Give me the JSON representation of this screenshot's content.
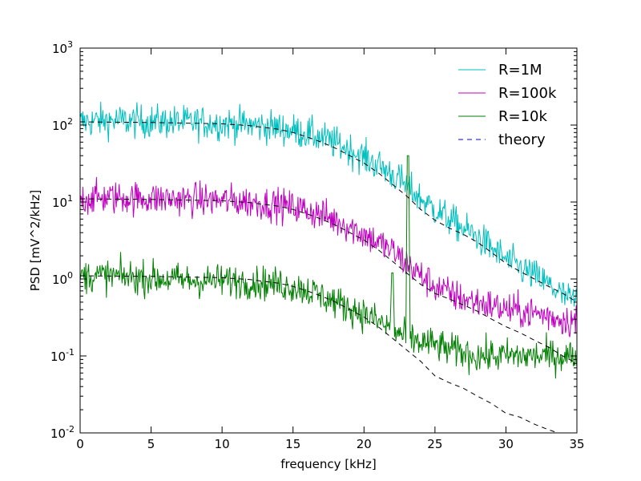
{
  "chart_data": {
    "type": "line",
    "title": "",
    "xlabel": "frequency [kHz]",
    "ylabel": "PSD [mV^2/kHz]",
    "xlim": [
      0,
      35
    ],
    "ylim": [
      0.01,
      1000
    ],
    "yscale": "log",
    "x_ticks": [
      "0",
      "5",
      "10",
      "15",
      "20",
      "25",
      "30",
      "35"
    ],
    "y_ticks": [
      {
        "base": "10",
        "exp": "-2"
      },
      {
        "base": "10",
        "exp": "-1"
      },
      {
        "base": "10",
        "exp": "0"
      },
      {
        "base": "10",
        "exp": "1"
      },
      {
        "base": "10",
        "exp": "2"
      },
      {
        "base": "10",
        "exp": "3"
      }
    ],
    "grid": false,
    "legend_position": "top-right",
    "series": [
      {
        "name": "R=1M",
        "color": "#00bfbf",
        "style": "solid",
        "x": [
          0,
          2,
          4,
          6,
          8,
          10,
          12,
          14,
          15,
          16,
          17,
          18,
          19,
          20,
          21,
          22,
          23,
          24,
          25,
          26,
          27,
          28,
          29,
          30,
          31,
          32,
          33,
          34,
          35
        ],
        "y": [
          110,
          115,
          112,
          110,
          108,
          105,
          100,
          92,
          85,
          78,
          68,
          58,
          48,
          38,
          30,
          23,
          16,
          11,
          8,
          6.0,
          4.5,
          3.5,
          2.5,
          1.8,
          1.4,
          1.1,
          0.85,
          0.6,
          0.5
        ]
      },
      {
        "name": "R=100k",
        "color": "#bf00bf",
        "style": "solid",
        "x": [
          0,
          2,
          4,
          6,
          8,
          10,
          12,
          14,
          15,
          16,
          17,
          18,
          19,
          20,
          21,
          22,
          23,
          24,
          25,
          26,
          27,
          28,
          29,
          30,
          31,
          32,
          33,
          34,
          35
        ],
        "y": [
          11,
          11.5,
          11.2,
          11,
          10.8,
          10.5,
          10,
          9.2,
          8.5,
          7.8,
          6.8,
          5.8,
          4.8,
          3.8,
          3.0,
          2.3,
          1.6,
          1.1,
          0.8,
          0.65,
          0.55,
          0.5,
          0.45,
          0.4,
          0.38,
          0.36,
          0.33,
          0.3,
          0.28
        ]
      },
      {
        "name": "R=10k",
        "color": "#007f00",
        "style": "solid",
        "x": [
          0,
          2,
          4,
          6,
          8,
          10,
          12,
          14,
          15,
          16,
          17,
          18,
          19,
          20,
          21,
          22,
          23,
          24,
          25,
          26,
          27,
          28,
          29,
          30,
          31,
          32,
          33,
          34,
          35
        ],
        "y": [
          1.1,
          1.1,
          1.05,
          1.0,
          0.95,
          0.95,
          0.92,
          0.85,
          0.8,
          0.72,
          0.6,
          0.5,
          0.42,
          0.35,
          0.28,
          0.22,
          0.17,
          0.15,
          0.14,
          0.12,
          0.11,
          0.1,
          0.1,
          0.1,
          0.1,
          0.1,
          0.1,
          0.1,
          0.1
        ],
        "spikes": [
          {
            "x": 23.1,
            "y": 40
          },
          {
            "x": 22.0,
            "y": 1.2
          }
        ]
      },
      {
        "name": "theory",
        "color": "#0000ff",
        "style": "dashed",
        "draw_color": "#000000",
        "legend_only_color": true,
        "curves": [
          {
            "x": [
              0,
              5,
              10,
              12,
              14,
              15,
              16,
              17,
              18,
              19,
              20,
              21,
              22,
              23,
              24,
              25,
              26,
              27,
              28,
              29,
              30,
              31,
              32,
              33,
              34,
              35
            ],
            "y": [
              110,
              108,
              104,
              98,
              88,
              80,
              70,
              60,
              50,
              40,
              32,
              24,
              17,
              12,
              8,
              5.8,
              4.6,
              3.8,
              3.0,
              2.2,
              1.6,
              1.25,
              1.0,
              0.8,
              0.65,
              0.5
            ]
          },
          {
            "x": [
              0,
              5,
              10,
              12,
              14,
              15,
              16,
              17,
              18,
              19,
              20,
              21,
              22,
              23,
              24,
              25,
              26,
              27,
              28,
              29,
              30,
              31,
              32,
              33,
              34,
              35
            ],
            "y": [
              11,
              10.8,
              10.4,
              9.8,
              8.8,
              8.0,
              7.0,
              6.0,
              5.0,
              4.0,
              3.2,
              2.4,
              1.7,
              1.2,
              0.85,
              0.65,
              0.55,
              0.46,
              0.38,
              0.3,
              0.24,
              0.2,
              0.16,
              0.13,
              0.1,
              0.08
            ]
          },
          {
            "x": [
              0,
              5,
              10,
              12,
              14,
              15,
              16,
              17,
              18,
              19,
              20,
              21,
              22,
              23,
              24,
              25,
              26,
              27,
              28,
              29,
              30,
              31,
              32,
              33,
              34
            ],
            "y": [
              1.1,
              1.08,
              1.04,
              0.98,
              0.88,
              0.8,
              0.7,
              0.6,
              0.5,
              0.4,
              0.32,
              0.24,
              0.17,
              0.12,
              0.085,
              0.055,
              0.045,
              0.038,
              0.03,
              0.024,
              0.018,
              0.016,
              0.013,
              0.011,
              0.0095
            ]
          }
        ]
      }
    ]
  }
}
